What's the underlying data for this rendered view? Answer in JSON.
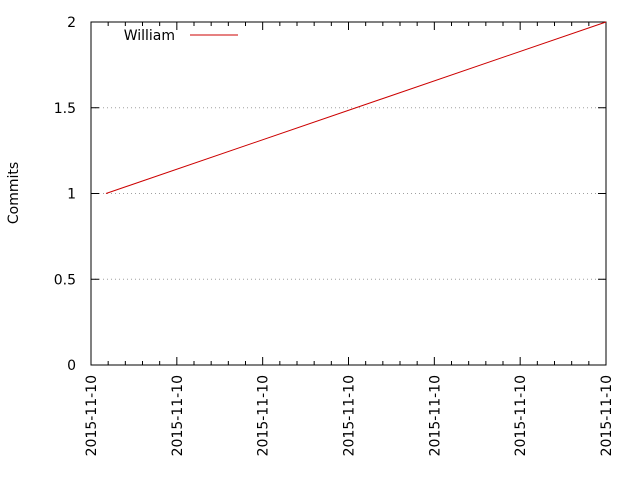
{
  "chart_data": {
    "type": "line",
    "title": "",
    "xlabel": "",
    "ylabel": "Commits",
    "x_tick_labels": [
      "2015-11-10",
      "2015-11-10",
      "2015-11-10",
      "2015-11-10",
      "2015-11-10",
      "2015-11-10",
      "2015-11-10"
    ],
    "y_ticks": [
      0,
      0.5,
      1,
      1.5,
      2
    ],
    "y_tick_labels": [
      "0",
      "0.5",
      "1",
      "1.5",
      "2"
    ],
    "ylim": [
      0,
      2
    ],
    "grid": "horizontal-dotted",
    "legend_position": "top-left",
    "series": [
      {
        "name": "William",
        "color": "#cc0000",
        "points": [
          {
            "x": "2015-11-10",
            "y": 1
          },
          {
            "x": "2015-11-10",
            "y": 2
          }
        ]
      }
    ]
  }
}
